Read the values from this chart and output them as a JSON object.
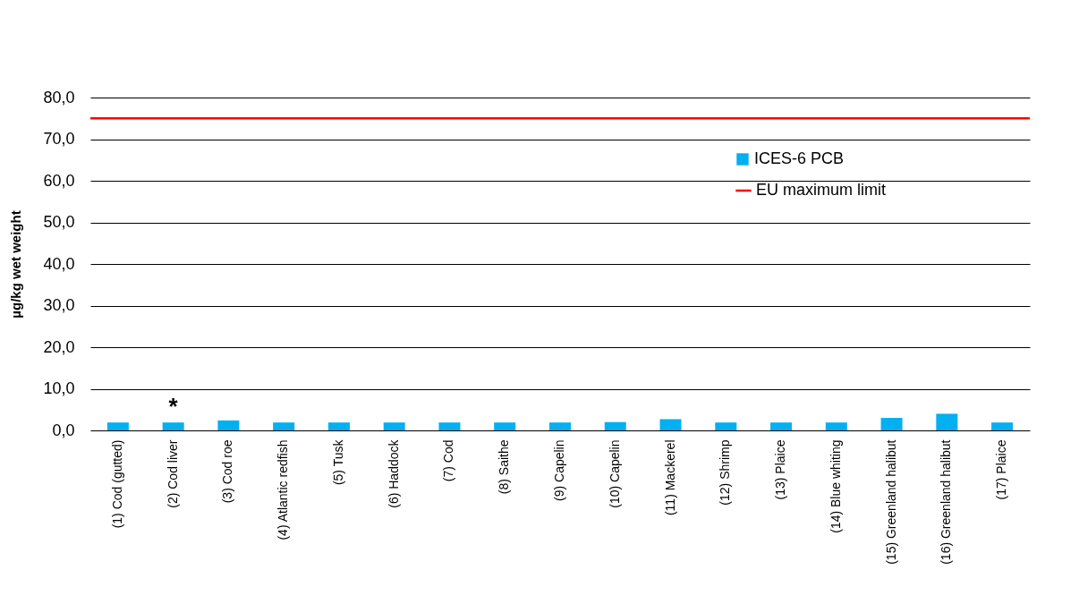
{
  "chart_data": {
    "type": "bar",
    "ylabel": "µg/kg wet weight",
    "categories": [
      "(1) Cod (gutted)",
      "(2) Cod liver",
      "(3) Cod roe",
      "(4) Atlantic redfish",
      "(5) Tusk",
      "(6) Haddock",
      "(7) Cod",
      "(8) Saithe",
      "(9) Capelin",
      "(10) Capelin",
      "(11) Mackerel",
      "(12) Shrimp",
      "(13) Plaice",
      "(14) Blue whiting",
      "(15) Greenland halibut",
      "(16) Greenland halibut",
      "(17) Plaice"
    ],
    "series": [
      {
        "name": "ICES-6 PCB",
        "color": "#00b0f0",
        "values": [
          1.9,
          1.9,
          2.4,
          1.9,
          1.9,
          1.9,
          1.9,
          1.9,
          1.9,
          2.0,
          2.7,
          1.9,
          1.9,
          1.9,
          3.0,
          4.0,
          1.9
        ]
      }
    ],
    "ref_lines": [
      {
        "axis": "y",
        "value": 75,
        "label": "EU maximum limit",
        "color": "#ff0000"
      }
    ],
    "annotations": [
      {
        "text": "*",
        "x": "(2) Cod liver",
        "y": 1.9
      }
    ],
    "ylim": [
      0,
      80
    ],
    "yticks": [
      {
        "value": 0,
        "label": "0,0"
      },
      {
        "value": 10,
        "label": "10,0"
      },
      {
        "value": 20,
        "label": "20,0"
      },
      {
        "value": 30,
        "label": "30,0"
      },
      {
        "value": 40,
        "label": "40,0"
      },
      {
        "value": 50,
        "label": "50,0"
      },
      {
        "value": 60,
        "label": "60,0"
      },
      {
        "value": 70,
        "label": "70,0"
      },
      {
        "value": 80,
        "label": "80,0"
      }
    ],
    "grid": "y",
    "legend": "top right"
  }
}
